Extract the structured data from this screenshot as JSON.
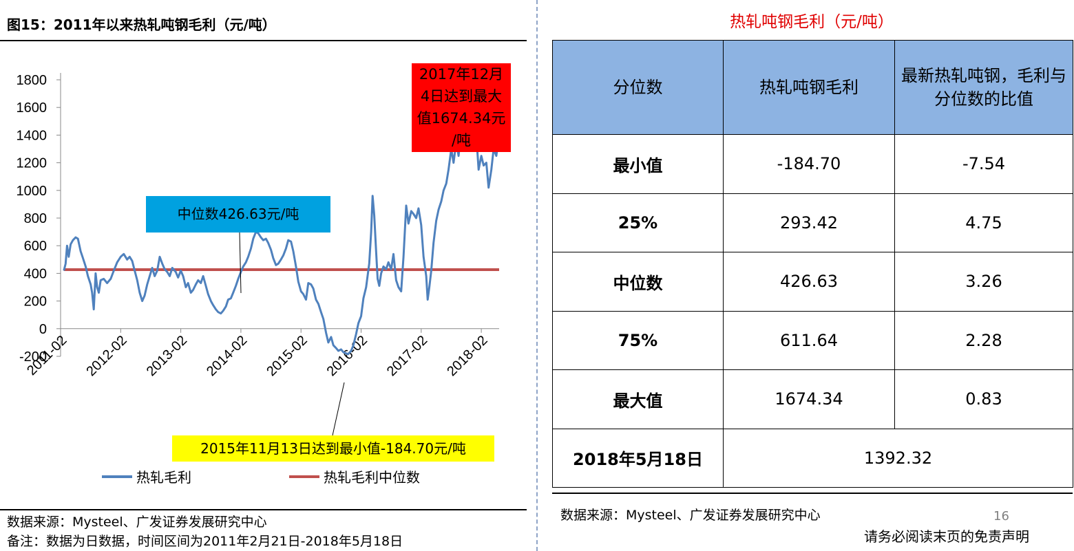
{
  "left_panel": {
    "figure_title": "图15：2011年以来热轧吨钢毛利（元/吨）",
    "source": "数据来源：Mysteel、广发证券发展研究中心",
    "note": "备注：数据为日数据，时间区间为2011年2月21日-2018年5月18日"
  },
  "chart_data": {
    "type": "line",
    "x_tick_labels": [
      "2011-02",
      "2012-02",
      "2013-02",
      "2014-02",
      "2015-02",
      "2016-02",
      "2017-02",
      "2018-02"
    ],
    "y_tick_labels": [
      "-200",
      "0",
      "200",
      "400",
      "600",
      "800",
      "1000",
      "1200",
      "1400",
      "1600",
      "1800"
    ],
    "ylim": [
      -200,
      1800
    ],
    "x_start": "2011-02",
    "x_end": "2018-05",
    "series": [
      {
        "name": "热轧毛利",
        "color": "#4f81bd",
        "points": [
          [
            "2011-02-21",
            420
          ],
          [
            "2011-03-01",
            470
          ],
          [
            "2011-03-10",
            600
          ],
          [
            "2011-03-20",
            520
          ],
          [
            "2011-04-01",
            610
          ],
          [
            "2011-04-15",
            640
          ],
          [
            "2011-05-01",
            660
          ],
          [
            "2011-05-15",
            650
          ],
          [
            "2011-06-01",
            560
          ],
          [
            "2011-06-15",
            510
          ],
          [
            "2011-07-01",
            450
          ],
          [
            "2011-07-15",
            380
          ],
          [
            "2011-08-01",
            320
          ],
          [
            "2011-08-10",
            260
          ],
          [
            "2011-08-20",
            140
          ],
          [
            "2011-09-01",
            400
          ],
          [
            "2011-09-10",
            300
          ],
          [
            "2011-09-20",
            260
          ],
          [
            "2011-10-01",
            350
          ],
          [
            "2011-10-20",
            360
          ],
          [
            "2011-11-10",
            330
          ],
          [
            "2011-12-01",
            360
          ],
          [
            "2011-12-20",
            420
          ],
          [
            "2012-01-10",
            480
          ],
          [
            "2012-02-01",
            520
          ],
          [
            "2012-02-20",
            540
          ],
          [
            "2012-03-10",
            500
          ],
          [
            "2012-03-25",
            520
          ],
          [
            "2012-04-10",
            490
          ],
          [
            "2012-04-25",
            420
          ],
          [
            "2012-05-10",
            350
          ],
          [
            "2012-05-25",
            260
          ],
          [
            "2012-06-10",
            200
          ],
          [
            "2012-06-25",
            240
          ],
          [
            "2012-07-10",
            320
          ],
          [
            "2012-07-25",
            380
          ],
          [
            "2012-08-10",
            440
          ],
          [
            "2012-08-25",
            380
          ],
          [
            "2012-09-10",
            420
          ],
          [
            "2012-09-25",
            520
          ],
          [
            "2012-10-10",
            470
          ],
          [
            "2012-10-25",
            430
          ],
          [
            "2012-11-10",
            410
          ],
          [
            "2012-11-25",
            380
          ],
          [
            "2012-12-10",
            440
          ],
          [
            "2013-01-01",
            410
          ],
          [
            "2013-01-15",
            370
          ],
          [
            "2013-02-01",
            420
          ],
          [
            "2013-02-15",
            380
          ],
          [
            "2013-03-01",
            300
          ],
          [
            "2013-03-15",
            330
          ],
          [
            "2013-04-01",
            260
          ],
          [
            "2013-04-15",
            280
          ],
          [
            "2013-05-01",
            320
          ],
          [
            "2013-05-15",
            350
          ],
          [
            "2013-06-01",
            330
          ],
          [
            "2013-06-15",
            380
          ],
          [
            "2013-07-01",
            310
          ],
          [
            "2013-07-15",
            250
          ],
          [
            "2013-08-01",
            200
          ],
          [
            "2013-08-15",
            170
          ],
          [
            "2013-09-01",
            140
          ],
          [
            "2013-09-15",
            120
          ],
          [
            "2013-10-01",
            110
          ],
          [
            "2013-10-15",
            130
          ],
          [
            "2013-11-01",
            160
          ],
          [
            "2013-11-15",
            210
          ],
          [
            "2013-12-01",
            220
          ],
          [
            "2013-12-15",
            260
          ],
          [
            "2014-01-01",
            310
          ],
          [
            "2014-01-15",
            360
          ],
          [
            "2014-02-01",
            410
          ],
          [
            "2014-02-15",
            450
          ],
          [
            "2014-03-01",
            480
          ],
          [
            "2014-03-15",
            520
          ],
          [
            "2014-04-01",
            580
          ],
          [
            "2014-04-15",
            650
          ],
          [
            "2014-05-01",
            700
          ],
          [
            "2014-05-15",
            690
          ],
          [
            "2014-06-01",
            660
          ],
          [
            "2014-06-15",
            640
          ],
          [
            "2014-07-01",
            650
          ],
          [
            "2014-07-15",
            620
          ],
          [
            "2014-08-01",
            570
          ],
          [
            "2014-08-15",
            510
          ],
          [
            "2014-09-01",
            460
          ],
          [
            "2014-09-15",
            470
          ],
          [
            "2014-10-01",
            500
          ],
          [
            "2014-10-15",
            530
          ],
          [
            "2014-11-01",
            580
          ],
          [
            "2014-11-15",
            640
          ],
          [
            "2014-12-01",
            630
          ],
          [
            "2014-12-15",
            560
          ],
          [
            "2015-01-01",
            450
          ],
          [
            "2015-01-15",
            340
          ],
          [
            "2015-02-01",
            270
          ],
          [
            "2015-02-15",
            250
          ],
          [
            "2015-03-01",
            210
          ],
          [
            "2015-03-15",
            330
          ],
          [
            "2015-04-01",
            320
          ],
          [
            "2015-04-15",
            290
          ],
          [
            "2015-05-01",
            210
          ],
          [
            "2015-05-15",
            180
          ],
          [
            "2015-06-01",
            120
          ],
          [
            "2015-06-15",
            70
          ],
          [
            "2015-07-01",
            -30
          ],
          [
            "2015-07-15",
            -100
          ],
          [
            "2015-08-01",
            -60
          ],
          [
            "2015-08-15",
            -120
          ],
          [
            "2015-09-01",
            -140
          ],
          [
            "2015-09-15",
            -160
          ],
          [
            "2015-10-01",
            -150
          ],
          [
            "2015-10-15",
            -170
          ],
          [
            "2015-11-13",
            -184.7
          ],
          [
            "2015-12-01",
            -160
          ],
          [
            "2015-12-15",
            -120
          ],
          [
            "2016-01-01",
            -40
          ],
          [
            "2016-01-15",
            40
          ],
          [
            "2016-02-01",
            90
          ],
          [
            "2016-02-15",
            220
          ],
          [
            "2016-03-01",
            300
          ],
          [
            "2016-03-10",
            380
          ],
          [
            "2016-03-20",
            470
          ],
          [
            "2016-04-01",
            700
          ],
          [
            "2016-04-10",
            960
          ],
          [
            "2016-04-20",
            820
          ],
          [
            "2016-05-01",
            560
          ],
          [
            "2016-05-10",
            360
          ],
          [
            "2016-05-20",
            310
          ],
          [
            "2016-06-01",
            400
          ],
          [
            "2016-06-15",
            450
          ],
          [
            "2016-07-01",
            430
          ],
          [
            "2016-07-15",
            480
          ],
          [
            "2016-08-01",
            430
          ],
          [
            "2016-08-15",
            540
          ],
          [
            "2016-09-01",
            350
          ],
          [
            "2016-09-15",
            300
          ],
          [
            "2016-10-01",
            270
          ],
          [
            "2016-10-15",
            520
          ],
          [
            "2016-11-01",
            890
          ],
          [
            "2016-11-15",
            760
          ],
          [
            "2016-12-01",
            850
          ],
          [
            "2016-12-15",
            830
          ],
          [
            "2017-01-01",
            800
          ],
          [
            "2017-01-15",
            870
          ],
          [
            "2017-02-01",
            750
          ],
          [
            "2017-02-15",
            520
          ],
          [
            "2017-03-01",
            380
          ],
          [
            "2017-03-10",
            210
          ],
          [
            "2017-03-20",
            300
          ],
          [
            "2017-04-01",
            420
          ],
          [
            "2017-04-15",
            620
          ],
          [
            "2017-05-01",
            780
          ],
          [
            "2017-05-15",
            860
          ],
          [
            "2017-06-01",
            920
          ],
          [
            "2017-06-15",
            1000
          ],
          [
            "2017-07-01",
            1050
          ],
          [
            "2017-07-15",
            1150
          ],
          [
            "2017-08-01",
            1300
          ],
          [
            "2017-08-15",
            1200
          ],
          [
            "2017-09-01",
            1350
          ],
          [
            "2017-09-15",
            1250
          ],
          [
            "2017-10-01",
            1450
          ],
          [
            "2017-10-15",
            1330
          ],
          [
            "2017-11-01",
            1500
          ],
          [
            "2017-11-15",
            1580
          ],
          [
            "2017-12-04",
            1674.34
          ],
          [
            "2017-12-15",
            1560
          ],
          [
            "2018-01-01",
            1400
          ],
          [
            "2018-01-15",
            1150
          ],
          [
            "2018-02-01",
            1250
          ],
          [
            "2018-02-15",
            1180
          ],
          [
            "2018-03-01",
            1200
          ],
          [
            "2018-03-15",
            1020
          ],
          [
            "2018-04-01",
            1150
          ],
          [
            "2018-04-15",
            1300
          ],
          [
            "2018-05-01",
            1250
          ],
          [
            "2018-05-18",
            1392.32
          ]
        ]
      },
      {
        "name": "热轧毛利中位数",
        "color": "#c0504d",
        "points": [
          [
            "2011-02-21",
            426.63
          ],
          [
            "2018-05-18",
            426.63
          ]
        ]
      }
    ],
    "annotations": {
      "max": "2017年12月4日达到最大值1674.34元/吨",
      "median": "中位数426.63元/吨",
      "min": "2015年11月13日达到最小值-184.70元/吨"
    }
  },
  "callouts": {
    "max_lines": [
      "2017年12月",
      "4日达到最大",
      "值1674.34元",
      "/吨"
    ],
    "median": "中位数426.63元/吨",
    "min": "2015年11月13日达到最小值-184.70元/吨"
  },
  "legend": [
    "热轧毛利",
    "热轧毛利中位数"
  ],
  "right_panel": {
    "title": "热轧吨钢毛利（元/吨）",
    "headers": [
      "分位数",
      "热轧吨钢毛利",
      "最新热轧吨钢，毛利与分位数的比值"
    ],
    "rows": [
      [
        "最小值",
        "-184.70",
        "-7.54"
      ],
      [
        "25%",
        "293.42",
        "4.75"
      ],
      [
        "中位数",
        "426.63",
        "3.26"
      ],
      [
        "75%",
        "611.64",
        "2.28"
      ],
      [
        "最大值",
        "1674.34",
        "0.83"
      ]
    ],
    "last_row": [
      "2018年5月18日",
      "1392.32"
    ],
    "source": "数据来源：Mysteel、广发证券发展研究中心"
  },
  "page_number": "16",
  "disclaimer": "请务必阅读末页的免责声明"
}
